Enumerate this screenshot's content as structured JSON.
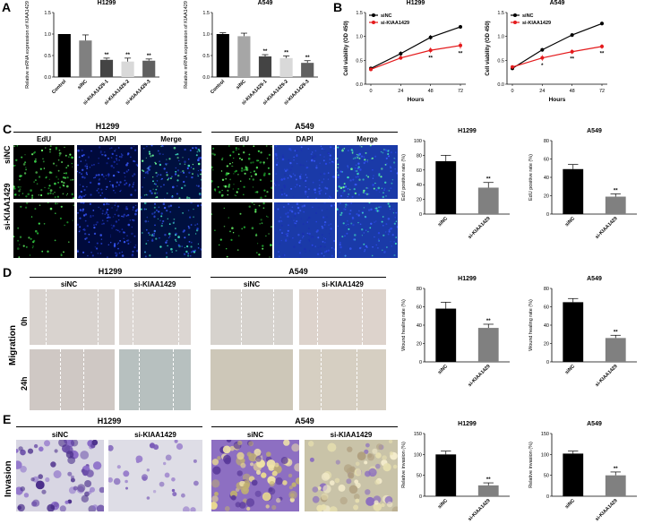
{
  "panels": {
    "A": "A",
    "B": "B",
    "C": "C",
    "D": "D",
    "E": "E"
  },
  "cell_lines": {
    "h1299": "H1299",
    "a549": "A549"
  },
  "conditions": {
    "sinc": "siNC",
    "si": "si-KIAA1429"
  },
  "stains": {
    "edu": "EdU",
    "dapi": "DAPI",
    "merge": "Merge"
  },
  "times": {
    "t0": "0h",
    "t24": "24h"
  },
  "assays": {
    "migration": "Migration",
    "invasion": "Invasion"
  },
  "colors": {
    "black": "#000000",
    "grey": "#808080",
    "lightgrey": "#b8b8b8",
    "red": "#e41a1c"
  },
  "chart_data": [
    {
      "id": "A1",
      "type": "bar",
      "title": "H1299",
      "ylabel": "Relative mRNA expression of KIAA1429",
      "ylim": [
        0,
        1.5
      ],
      "yticks": [
        "0.0",
        "0.5",
        "1.0",
        "1.5"
      ],
      "categories": [
        "Control",
        "siNC",
        "si-KIAA1429-1",
        "si-KIAA1429-2",
        "si-KIAA1429-3"
      ],
      "values": [
        1.0,
        0.85,
        0.4,
        0.36,
        0.38
      ],
      "errors": [
        0.0,
        0.13,
        0.04,
        0.08,
        0.04
      ],
      "colors": [
        "#000000",
        "#808080",
        "#444444",
        "#d9d9d9",
        "#606060"
      ],
      "annotations": [
        "",
        "",
        "**",
        "**",
        "**"
      ]
    },
    {
      "id": "A2",
      "type": "bar",
      "title": "A549",
      "ylabel": "Relative mRNA expression of KIAA1429",
      "ylim": [
        0,
        1.5
      ],
      "yticks": [
        "0.0",
        "0.5",
        "1.0",
        "1.5"
      ],
      "categories": [
        "Control",
        "siNC",
        "si-KIAA1429-1",
        "si-KIAA1429-2",
        "si-KIAA1429-3"
      ],
      "values": [
        1.0,
        0.95,
        0.48,
        0.44,
        0.33
      ],
      "errors": [
        0.03,
        0.07,
        0.04,
        0.05,
        0.05
      ],
      "colors": [
        "#000000",
        "#a6a6a6",
        "#444444",
        "#d9d9d9",
        "#606060"
      ],
      "annotations": [
        "",
        "",
        "**",
        "**",
        "**"
      ]
    },
    {
      "id": "B1",
      "type": "line",
      "title": "H1299",
      "ylabel": "Cell viability (OD 450)",
      "xlabel": "Hours",
      "xticks": [
        "0",
        "24",
        "48",
        "72"
      ],
      "ylim": [
        0,
        1.5
      ],
      "yticks": [
        "0.0",
        "0.5",
        "1.0",
        "1.5"
      ],
      "series": [
        {
          "name": "siNC",
          "color": "#000000",
          "values": [
            0.33,
            0.64,
            0.98,
            1.2
          ],
          "errors": [
            0.02,
            0.05,
            0.05,
            0.04
          ]
        },
        {
          "name": "si-KIAA1429",
          "color": "#e41a1c",
          "values": [
            0.31,
            0.55,
            0.71,
            0.81
          ],
          "errors": [
            0.02,
            0.04,
            0.06,
            0.07
          ]
        }
      ],
      "annotations": [
        "",
        "",
        "**",
        "**"
      ]
    },
    {
      "id": "B2",
      "type": "line",
      "title": "A549",
      "ylabel": "Cell viability (OD 450)",
      "xlabel": "Hours",
      "xticks": [
        "0",
        "24",
        "48",
        "72"
      ],
      "ylim": [
        0,
        1.5
      ],
      "yticks": [
        "0.0",
        "0.5",
        "1.0",
        "1.5"
      ],
      "series": [
        {
          "name": "siNC",
          "color": "#000000",
          "values": [
            0.33,
            0.72,
            1.03,
            1.27
          ],
          "errors": [
            0.03,
            0.04,
            0.04,
            0.04
          ]
        },
        {
          "name": "si-KIAA1429",
          "color": "#e41a1c",
          "values": [
            0.36,
            0.55,
            0.68,
            0.79
          ],
          "errors": [
            0.03,
            0.06,
            0.05,
            0.05
          ]
        }
      ],
      "annotations": [
        "",
        "*",
        "**",
        "**"
      ]
    },
    {
      "id": "C1",
      "type": "bar",
      "title": "H1299",
      "ylabel": "EdU positive rate (%)",
      "ylim": [
        0,
        100
      ],
      "yticks": [
        "0",
        "20",
        "40",
        "60",
        "80",
        "100"
      ],
      "categories": [
        "siNC",
        "si-KIAA1429"
      ],
      "values": [
        72,
        36
      ],
      "errors": [
        8,
        7
      ],
      "colors": [
        "#000000",
        "#808080"
      ],
      "annotations": [
        "",
        "**"
      ]
    },
    {
      "id": "C2",
      "type": "bar",
      "title": "A549",
      "ylabel": "EdU positive rate (%)",
      "ylim": [
        0,
        80
      ],
      "yticks": [
        "0",
        "20",
        "40",
        "60",
        "80"
      ],
      "categories": [
        "siNC",
        "si-KIAA1429"
      ],
      "values": [
        49,
        19
      ],
      "errors": [
        5,
        3
      ],
      "colors": [
        "#000000",
        "#808080"
      ],
      "annotations": [
        "",
        "**"
      ]
    },
    {
      "id": "D1",
      "type": "bar",
      "title": "H1299",
      "ylabel": "Wound healing rate (%)",
      "ylim": [
        0,
        80
      ],
      "yticks": [
        "0",
        "20",
        "40",
        "60",
        "80"
      ],
      "categories": [
        "siNC",
        "si-KIAA1429"
      ],
      "values": [
        58,
        37
      ],
      "errors": [
        7,
        4
      ],
      "colors": [
        "#000000",
        "#808080"
      ],
      "annotations": [
        "",
        "**"
      ]
    },
    {
      "id": "D2",
      "type": "bar",
      "title": "A549",
      "ylabel": "Wound healing rate (%)",
      "ylim": [
        0,
        80
      ],
      "yticks": [
        "0",
        "20",
        "40",
        "60",
        "80"
      ],
      "categories": [
        "siNC",
        "si-KIAA1429"
      ],
      "values": [
        65,
        26
      ],
      "errors": [
        4,
        3
      ],
      "colors": [
        "#000000",
        "#808080"
      ],
      "annotations": [
        "",
        "**"
      ]
    },
    {
      "id": "E1",
      "type": "bar",
      "title": "H1299",
      "ylabel": "Relative invasion (%)",
      "ylim": [
        0,
        150
      ],
      "yticks": [
        "0",
        "50",
        "100",
        "150"
      ],
      "categories": [
        "siNC",
        "si-KIAA1429"
      ],
      "values": [
        100,
        26
      ],
      "errors": [
        8,
        6
      ],
      "colors": [
        "#000000",
        "#808080"
      ],
      "annotations": [
        "",
        "**"
      ]
    },
    {
      "id": "E2",
      "type": "bar",
      "title": "A549",
      "ylabel": "Relative invasion (%)",
      "ylim": [
        0,
        150
      ],
      "yticks": [
        "0",
        "50",
        "100",
        "150"
      ],
      "categories": [
        "siNC",
        "si-KIAA1429"
      ],
      "values": [
        102,
        50
      ],
      "errors": [
        6,
        8
      ],
      "colors": [
        "#000000",
        "#808080"
      ],
      "annotations": [
        "",
        "**"
      ]
    }
  ]
}
